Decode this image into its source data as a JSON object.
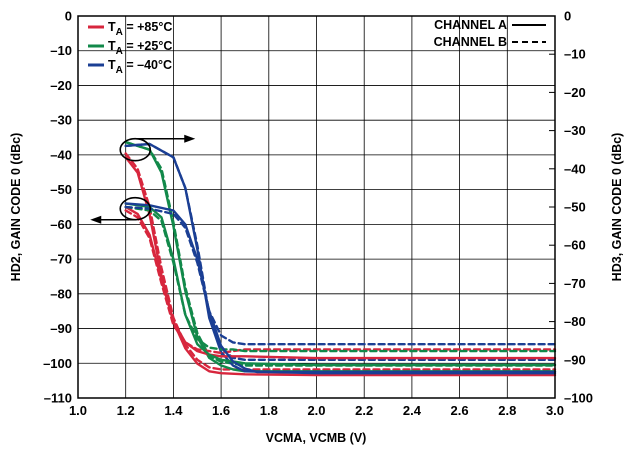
{
  "chart_data": {
    "type": "line",
    "xlabel": "VCMA, VCMB (V)",
    "ylabel": "HD2, GAIN CODE 0 (dBc)",
    "y2label": "HD3, GAIN CODE 0 (dBc)",
    "xlim": [
      1.0,
      3.0
    ],
    "ylim": [
      -110,
      0
    ],
    "y2lim": [
      -100,
      0
    ],
    "grid": true,
    "x_ticks": [
      "1.0",
      "1.2",
      "1.4",
      "1.6",
      "1.8",
      "2.0",
      "2.2",
      "2.4",
      "2.6",
      "2.8",
      "3.0"
    ],
    "y_ticks": [
      "0",
      "–10",
      "–20",
      "–30",
      "–40",
      "–50",
      "–60",
      "–70",
      "–80",
      "–90",
      "–100",
      "–110"
    ],
    "y2_ticks": [
      "0",
      "–10",
      "–20",
      "–30",
      "–40",
      "–50",
      "–60",
      "–70",
      "–80",
      "–90",
      "–100"
    ],
    "temperature_legend": [
      {
        "prefix": "T",
        "sub": "A",
        "suffix": " = +85°C",
        "color": "#d7263d"
      },
      {
        "prefix": "T",
        "sub": "A",
        "suffix": " = +25°C",
        "color": "#12894a"
      },
      {
        "prefix": "T",
        "sub": "A",
        "suffix": " = –40°C",
        "color": "#1b3f94"
      }
    ],
    "channel_legend": [
      {
        "label": "CHANNEL A",
        "style": "solid"
      },
      {
        "label": "CHANNEL B",
        "style": "dashed"
      }
    ],
    "colors": {
      "+85C": "#d7263d",
      "+25C": "#12894a",
      "-40C": "#1b3f94"
    },
    "annotations": [
      {
        "marker": "ellipse",
        "at": [
          1.24,
          -38.5
        ],
        "arrow": "right",
        "axis": "HD3 (right)"
      },
      {
        "marker": "ellipse",
        "at": [
          1.24,
          -55.5
        ],
        "arrow": "left",
        "axis": "HD2 (left)"
      }
    ],
    "series": [
      {
        "name": "HD3 +85°C A",
        "metric": "HD3",
        "temp": "+85C",
        "channel": "A",
        "axis": "y2",
        "x": [
          1.2,
          1.25,
          1.3,
          1.35,
          1.4,
          1.45,
          1.5,
          1.55,
          1.6,
          1.7,
          2.0,
          3.0
        ],
        "y": [
          -37,
          -41,
          -52,
          -68,
          -80,
          -87,
          -91,
          -93,
          -93.5,
          -93.8,
          -94,
          -94
        ]
      },
      {
        "name": "HD3 +85°C B",
        "metric": "HD3",
        "temp": "+85C",
        "channel": "B",
        "axis": "y2",
        "x": [
          1.2,
          1.25,
          1.3,
          1.35,
          1.4,
          1.45,
          1.5,
          1.55,
          1.6,
          1.7,
          2.0,
          3.0
        ],
        "y": [
          -36,
          -40,
          -50,
          -66,
          -79,
          -86,
          -90,
          -92,
          -92.5,
          -92.5,
          -92.5,
          -92.5
        ]
      },
      {
        "name": "HD3 +25°C A",
        "metric": "HD3",
        "temp": "+25C",
        "channel": "A",
        "axis": "y2",
        "x": [
          1.2,
          1.3,
          1.35,
          1.4,
          1.45,
          1.5,
          1.55,
          1.6,
          1.65,
          1.7,
          2.0,
          3.0
        ],
        "y": [
          -33,
          -35,
          -41,
          -55,
          -72,
          -84,
          -89.5,
          -91.5,
          -92.5,
          -93,
          -93,
          -93
        ]
      },
      {
        "name": "HD3 +25°C B",
        "metric": "HD3",
        "temp": "+25C",
        "channel": "B",
        "axis": "y2",
        "x": [
          1.2,
          1.3,
          1.35,
          1.4,
          1.45,
          1.5,
          1.55,
          1.6,
          1.65,
          1.7,
          2.0,
          3.0
        ],
        "y": [
          -33,
          -35,
          -40,
          -54,
          -71,
          -83,
          -89,
          -90.5,
          -91,
          -91.5,
          -91.5,
          -91.5
        ]
      },
      {
        "name": "HD3 –40°C A",
        "metric": "HD3",
        "temp": "-40C",
        "channel": "A",
        "axis": "y2",
        "x": [
          1.2,
          1.3,
          1.4,
          1.45,
          1.5,
          1.55,
          1.6,
          1.65,
          1.7,
          2.0,
          3.0
        ],
        "y": [
          -34,
          -33.5,
          -37,
          -45,
          -61,
          -79,
          -88,
          -91.5,
          -93,
          -93.5,
          -93.5
        ]
      },
      {
        "name": "HD3 –40°C B",
        "metric": "HD3",
        "temp": "-40C",
        "channel": "B",
        "axis": "y2",
        "x": [
          1.2,
          1.3,
          1.4,
          1.45,
          1.5,
          1.55,
          1.6,
          1.65,
          1.7,
          2.0,
          3.0
        ],
        "y": [
          -34,
          -33.5,
          -37,
          -45,
          -60,
          -78,
          -87,
          -89.5,
          -90,
          -90,
          -90
        ]
      },
      {
        "name": "HD2 +85°C A",
        "metric": "HD2",
        "temp": "+85C",
        "channel": "A",
        "axis": "y",
        "x": [
          1.2,
          1.25,
          1.3,
          1.35,
          1.4,
          1.45,
          1.5,
          1.55,
          1.6,
          1.7,
          2.0,
          3.0
        ],
        "y": [
          -55,
          -57,
          -63,
          -76,
          -88,
          -94,
          -96.5,
          -97.5,
          -98,
          -98,
          -98.5,
          -98.5
        ]
      },
      {
        "name": "HD2 +85°C B",
        "metric": "HD2",
        "temp": "+85C",
        "channel": "B",
        "axis": "y",
        "x": [
          1.2,
          1.25,
          1.3,
          1.35,
          1.4,
          1.45,
          1.5,
          1.55,
          1.6,
          1.7,
          2.0,
          3.0
        ],
        "y": [
          -56,
          -58,
          -64,
          -77,
          -89,
          -94,
          -96,
          -96.5,
          -97,
          -96,
          -96,
          -96
        ]
      },
      {
        "name": "HD2 +25°C A",
        "metric": "HD2",
        "temp": "+25C",
        "channel": "A",
        "axis": "y",
        "x": [
          1.2,
          1.3,
          1.35,
          1.4,
          1.45,
          1.5,
          1.55,
          1.6,
          1.65,
          1.7,
          2.0,
          3.0
        ],
        "y": [
          -54,
          -55,
          -58,
          -70,
          -86,
          -94.5,
          -97.5,
          -99,
          -99.5,
          -100,
          -100.5,
          -100.5
        ]
      },
      {
        "name": "HD2 +25°C B",
        "metric": "HD2",
        "temp": "+25C",
        "channel": "B",
        "axis": "y",
        "x": [
          1.2,
          1.3,
          1.35,
          1.4,
          1.45,
          1.5,
          1.55,
          1.6,
          1.65,
          1.7,
          2.0,
          3.0
        ],
        "y": [
          -55,
          -56,
          -59,
          -71,
          -86,
          -93,
          -95.5,
          -96,
          -96,
          -96.5,
          -96.5,
          -96.5
        ]
      },
      {
        "name": "HD2 –40°C A",
        "metric": "HD2",
        "temp": "-40C",
        "channel": "A",
        "axis": "y",
        "x": [
          1.2,
          1.3,
          1.4,
          1.45,
          1.5,
          1.55,
          1.6,
          1.65,
          1.7,
          1.75,
          2.0,
          3.0
        ],
        "y": [
          -54,
          -54.5,
          -56,
          -60,
          -70,
          -85,
          -95,
          -99.5,
          -101.5,
          -102.5,
          -102.5,
          -102.5
        ]
      },
      {
        "name": "HD2 –40°C B",
        "metric": "HD2",
        "temp": "-40C",
        "channel": "B",
        "axis": "y",
        "x": [
          1.2,
          1.3,
          1.4,
          1.45,
          1.5,
          1.55,
          1.6,
          1.65,
          1.7,
          2.0,
          3.0
        ],
        "y": [
          -55,
          -55.5,
          -57,
          -61,
          -71,
          -85,
          -92,
          -94,
          -94.5,
          -94.5,
          -94.5
        ]
      }
    ]
  }
}
